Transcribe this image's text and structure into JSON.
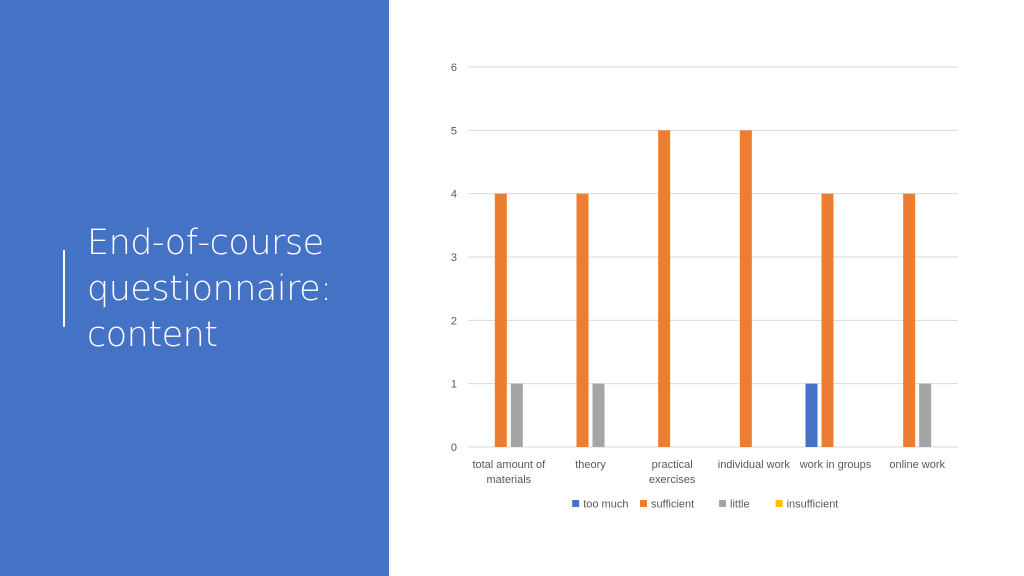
{
  "slide": {
    "title_lines": [
      "End-of-course",
      "questionnaire:",
      "content"
    ]
  },
  "colors": {
    "panel": "#4472C4",
    "too_much": "#4472C4",
    "sufficient": "#ED7D31",
    "little": "#A5A5A5",
    "insufficient": "#FFC000"
  },
  "chart_data": {
    "type": "bar",
    "title": "",
    "xlabel": "",
    "ylabel": "",
    "ylim": [
      0,
      6
    ],
    "yticks": [
      "0",
      "1",
      "2",
      "3",
      "4",
      "5",
      "6"
    ],
    "grid": true,
    "legend_position": "bottom",
    "categories": [
      [
        "total amount of",
        "materials"
      ],
      [
        "theory"
      ],
      [
        "practical",
        "exercises"
      ],
      [
        "individual work"
      ],
      [
        "work in groups"
      ],
      [
        "online work"
      ]
    ],
    "series": [
      {
        "name": "too much",
        "color": "#4472C4",
        "values": [
          0,
          0,
          0,
          0,
          1,
          0
        ]
      },
      {
        "name": "sufficient",
        "color": "#ED7D31",
        "values": [
          4,
          4,
          5,
          5,
          4,
          4
        ]
      },
      {
        "name": "little",
        "color": "#A5A5A5",
        "values": [
          1,
          1,
          0,
          0,
          0,
          1
        ]
      },
      {
        "name": "insufficient",
        "color": "#FFC000",
        "values": [
          0,
          0,
          0,
          0,
          0,
          0
        ]
      }
    ]
  }
}
